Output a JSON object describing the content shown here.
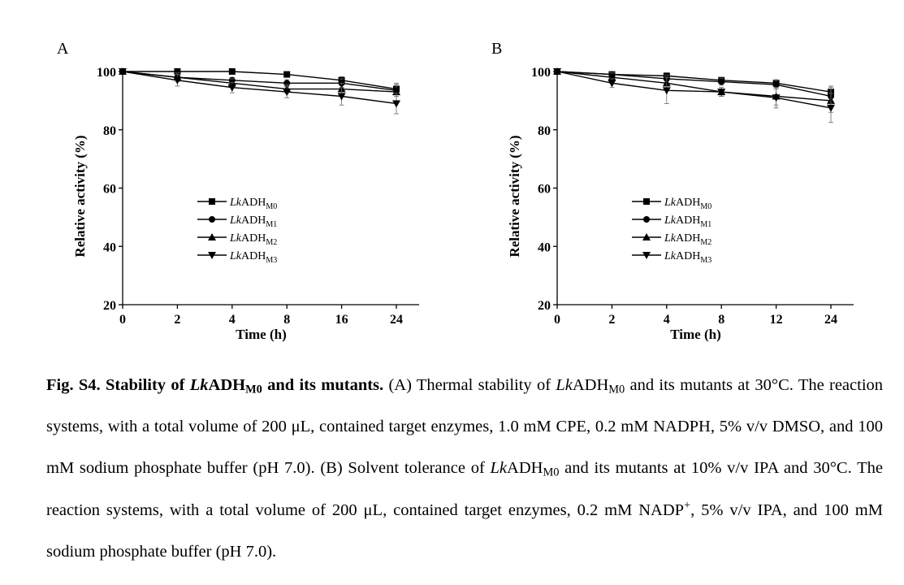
{
  "chart_data": [
    {
      "type": "line",
      "panel_label": "A",
      "xlabel": "Time (h)",
      "ylabel": "Relative activity (%)",
      "categories": [
        "0",
        "2",
        "4",
        "8",
        "16",
        "24"
      ],
      "ylim": [
        20,
        100
      ],
      "yticks": [
        20,
        40,
        60,
        80,
        100
      ],
      "grid": false,
      "legend_position": "center",
      "series": [
        {
          "name": "LkADH",
          "subscript": "M0",
          "marker": "square",
          "values": [
            100,
            100,
            100,
            99,
            97,
            94
          ],
          "errors": [
            0,
            0.5,
            0.6,
            0.7,
            1.2,
            1.5
          ]
        },
        {
          "name": "LkADH",
          "subscript": "M1",
          "marker": "circle",
          "values": [
            100,
            98,
            97,
            96,
            96,
            93.5
          ],
          "errors": [
            0,
            0.8,
            1.0,
            1.2,
            1.5,
            2.0
          ]
        },
        {
          "name": "LkADH",
          "subscript": "M2",
          "marker": "triangle-up",
          "values": [
            100,
            98,
            96,
            94,
            94,
            93
          ],
          "errors": [
            0,
            1.5,
            1.5,
            1.5,
            2.0,
            3.0
          ]
        },
        {
          "name": "LkADH",
          "subscript": "M3",
          "marker": "triangle-down",
          "values": [
            100,
            97,
            94.5,
            93,
            91.5,
            89
          ],
          "errors": [
            0,
            2.0,
            1.8,
            2.0,
            3.0,
            3.5
          ]
        }
      ]
    },
    {
      "type": "line",
      "panel_label": "B",
      "xlabel": "Time (h)",
      "ylabel": "Relative activity (%)",
      "categories": [
        "0",
        "2",
        "4",
        "8",
        "12",
        "24"
      ],
      "ylim": [
        20,
        100
      ],
      "yticks": [
        20,
        40,
        60,
        80,
        100
      ],
      "grid": false,
      "legend_position": "center",
      "series": [
        {
          "name": "LkADH",
          "subscript": "M0",
          "marker": "square",
          "values": [
            100,
            99,
            98.5,
            97,
            96,
            93
          ],
          "errors": [
            0,
            0.8,
            1.0,
            1.0,
            1.2,
            2.0
          ]
        },
        {
          "name": "LkADH",
          "subscript": "M1",
          "marker": "circle",
          "values": [
            100,
            99,
            97.5,
            96.5,
            95.5,
            91.5
          ],
          "errors": [
            0,
            1.0,
            1.2,
            1.2,
            1.5,
            3.0
          ]
        },
        {
          "name": "LkADH",
          "subscript": "M2",
          "marker": "triangle-up",
          "values": [
            100,
            98,
            96,
            93,
            91.5,
            90
          ],
          "errors": [
            0,
            1.5,
            2.0,
            1.5,
            3.0,
            4.0
          ]
        },
        {
          "name": "LkADH",
          "subscript": "M3",
          "marker": "triangle-down",
          "values": [
            100,
            96,
            93.5,
            93,
            91,
            87.5
          ],
          "errors": [
            0,
            1.5,
            4.5,
            1.5,
            3.5,
            5.0
          ]
        }
      ]
    }
  ],
  "caption": {
    "label": "Fig. S4.",
    "title_pre": "Stability of ",
    "title_italic": "Lk",
    "title_main": "ADH",
    "title_sub": "M0",
    "title_post": " and its mutants.",
    "part1_a": " (A) Thermal stability of ",
    "part1_italic": "Lk",
    "part1_main": "ADH",
    "part1_sub": "M0",
    "part1_b": " and its mutants at 30°C. The reaction systems, with a total volume of 200 μL, contained target enzymes, 1.0 mM CPE, 0.2 mM NADPH, 5% v/v DMSO, and 100 mM sodium phosphate buffer (pH 7.0). (B) Solvent tolerance of ",
    "part2_italic": "Lk",
    "part2_main": "ADH",
    "part2_sub": "M0",
    "part2_b": " and its mutants at 10% v/v IPA and 30°C. The reaction systems, with a total volume of 200 μL, contained target enzymes, 0.2 mM NADP",
    "part2_sup": "+",
    "part2_c": ", 5% v/v IPA, and 100 mM sodium phosphate buffer (pH 7.0)."
  }
}
